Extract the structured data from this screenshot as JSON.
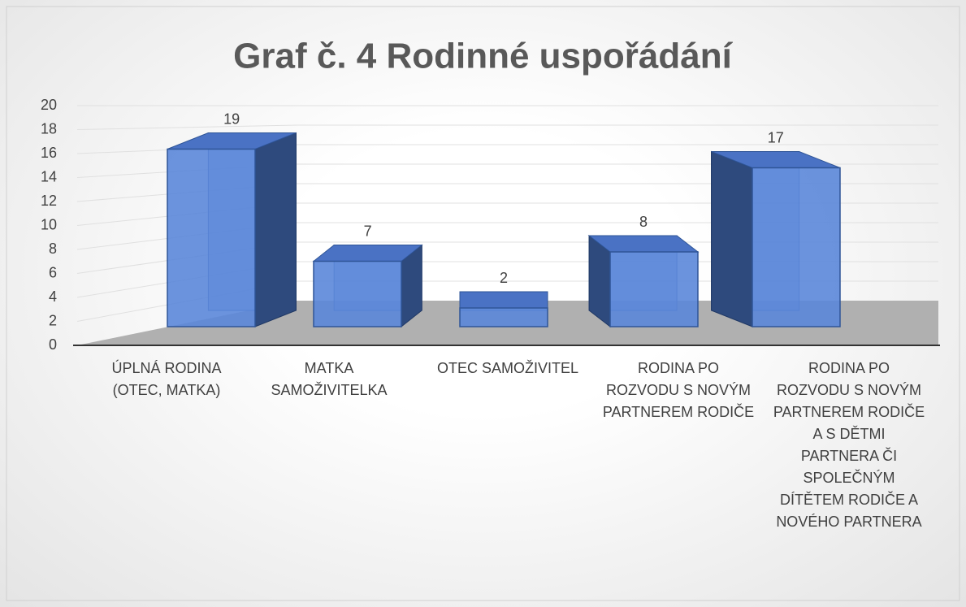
{
  "chart_data": {
    "type": "bar3d",
    "title": "Graf č. 4 Rodinné uspořádání",
    "categories": [
      "ÚPLNÁ RODINA (OTEC, MATKA)",
      "MATKA SAMOŽIVITELKA",
      "OTEC SAMOŽIVITEL",
      "RODINA PO ROZVODU S NOVÝM PARTNEREM RODIČE",
      "RODINA PO ROZVODU S NOVÝM PARTNEREM RODIČE A S DĚTMI PARTNERA ČI SPOLEČNÝM DÍTĚTEM RODIČE A NOVÉHO PARTNERA"
    ],
    "values": [
      19,
      7,
      2,
      8,
      17
    ],
    "color": "#5b87d9",
    "ylim": [
      0,
      20
    ],
    "yticks": [
      0,
      2,
      4,
      6,
      8,
      10,
      12,
      14,
      16,
      18,
      20
    ],
    "grid": true
  }
}
